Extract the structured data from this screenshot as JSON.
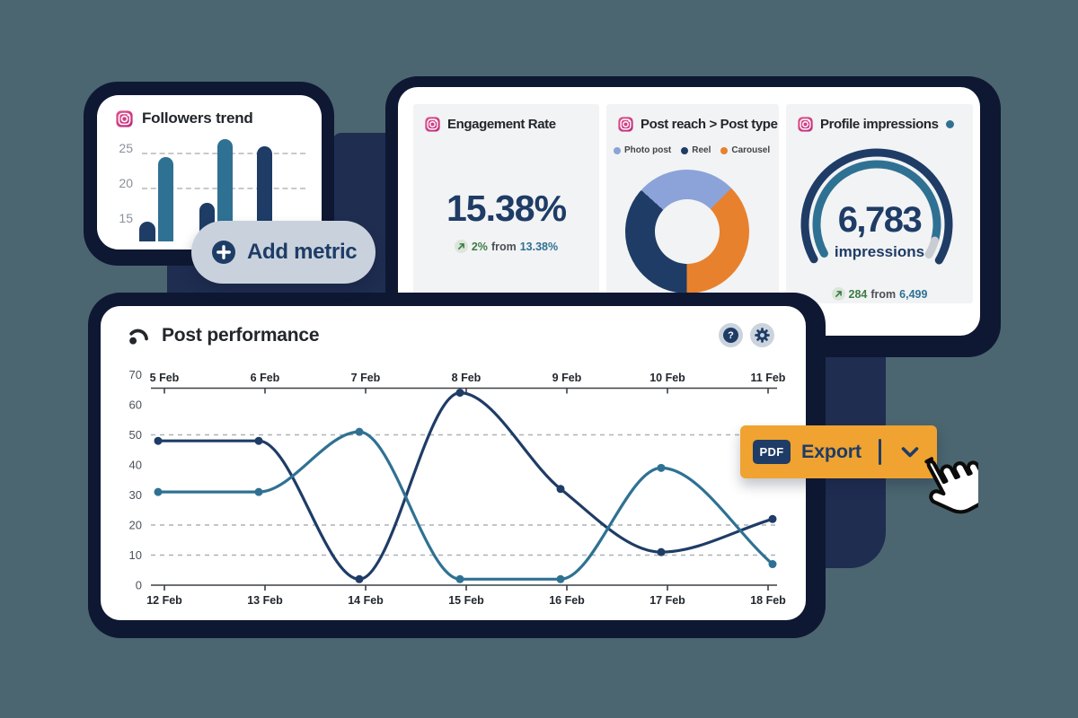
{
  "colors": {
    "background": "#4B6670",
    "shadow_navy": "#0E1833",
    "blob_navy": "#1F2D51",
    "card_white": "#FFFFFF",
    "panel_gray": "#F2F3F4",
    "navy": "#1E3C66",
    "teal": "#2F7193",
    "periwinkle": "#8BA3D9",
    "orange": "#E8812D",
    "button_orange": "#F0A330",
    "green": "#3C7C46",
    "green_chip": "#DCE5DA",
    "pill_gray": "#C9D2DC",
    "axis_gray": "#8A9099",
    "ytick_gray": "#4C5158",
    "xlabel_dark": "#23272D",
    "dashed_gray": "#AEB2B6",
    "arc_gray": "#C9CDD2",
    "axis_line": "#3C4147"
  },
  "followers_card": {
    "title": "Followers trend",
    "icon": "instagram-icon",
    "chart": {
      "type": "bar",
      "y_ticks": [
        25,
        20,
        15
      ],
      "dashed_gridlines": [
        25,
        20
      ],
      "bars": [
        {
          "value": 15.3,
          "series": "navy"
        },
        {
          "value": 24.5,
          "series": "teal"
        },
        {
          "value": 18,
          "series": "navy"
        },
        {
          "value": 27,
          "series": "teal"
        },
        {
          "value": 26,
          "series": "navy"
        }
      ]
    }
  },
  "add_metric_button": {
    "label": "Add metric",
    "icon": "plus-icon"
  },
  "overview_card": {
    "engagement": {
      "icon": "instagram-icon",
      "title": "Engagement Rate",
      "value": "15.38%",
      "change": "2%",
      "from_word": "from",
      "previous": "13.38%"
    },
    "post_reach": {
      "icon": "instagram-icon",
      "title": "Post reach > Post type",
      "legend": [
        "Photo post",
        "Reel",
        "Carousel"
      ],
      "chart": {
        "type": "pie",
        "start_deg": 312,
        "slices": [
          {
            "label": "Photo post",
            "percent": 26,
            "color_key": "periwinkle"
          },
          {
            "label": "Carousel",
            "percent": 37.5,
            "color_key": "orange"
          },
          {
            "label": "Reel",
            "percent": 36.5,
            "color_key": "navy"
          }
        ]
      }
    },
    "impressions": {
      "icon": "instagram-icon",
      "title": "Profile impressions",
      "value": "6,783",
      "unit": "impressions",
      "change": "284",
      "from_word": "from",
      "previous": "6,499",
      "chart": {
        "type": "gauge",
        "start_deg": 241,
        "end_deg": 120,
        "progress": 0.94
      }
    }
  },
  "performance_card": {
    "title": "Post performance",
    "icon": "speedometer-icon",
    "help_label": "?",
    "chart": {
      "type": "line",
      "x_labels_top": [
        "5 Feb",
        "6 Feb",
        "7 Feb",
        "8 Feb",
        "9 Feb",
        "10 Feb",
        "11 Feb"
      ],
      "x_labels_bottom": [
        "12 Feb",
        "13 Feb",
        "14 Feb",
        "15 Feb",
        "16 Feb",
        "17 Feb",
        "18 Feb"
      ],
      "ylim": [
        0,
        70
      ],
      "y_ticks": [
        70,
        60,
        50,
        40,
        30,
        20,
        10,
        0
      ],
      "dashed_gridlines": [
        50,
        20,
        10
      ],
      "series": [
        {
          "name": "navy",
          "values": [
            48,
            48,
            2,
            64,
            32,
            11,
            22
          ]
        },
        {
          "name": "teal",
          "values": [
            31,
            31,
            51,
            2,
            2,
            39,
            7
          ]
        }
      ]
    }
  },
  "export_button": {
    "badge": "PDF",
    "label": "Export",
    "icon": "chevron-down-icon"
  }
}
